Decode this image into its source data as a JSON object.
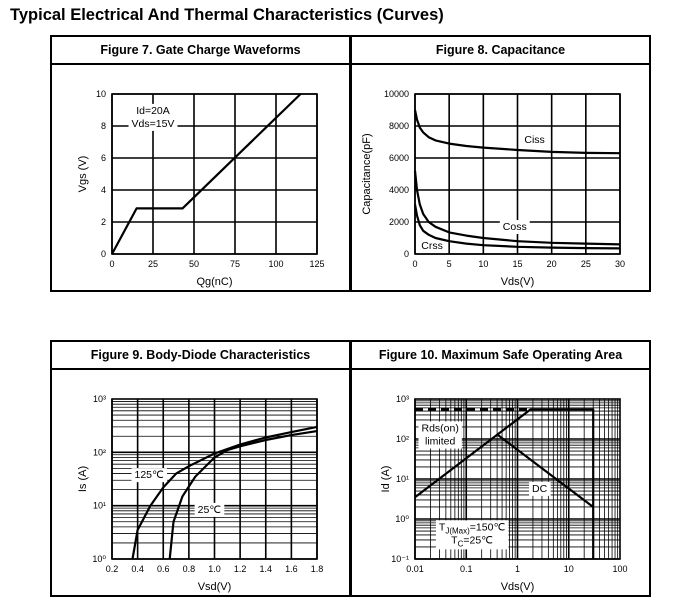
{
  "page": {
    "title": "Typical Electrical And Thermal Characteristics (Curves)"
  },
  "chart_data": [
    {
      "type": "line",
      "title": "Figure 7. Gate Charge Waveforms",
      "xlabel": "Qg(nC)",
      "ylabel": "Vgs (V)",
      "xscale": "linear",
      "yscale": "linear",
      "xlim": [
        0,
        125
      ],
      "ylim": [
        0,
        10
      ],
      "xticks": [
        0,
        25,
        50,
        75,
        100,
        125
      ],
      "xtick_labels": [
        "0",
        "25",
        "50",
        "75",
        "100",
        "125"
      ],
      "yticks": [
        0,
        2,
        4,
        6,
        8,
        10
      ],
      "ytick_labels": [
        "0",
        "2",
        "4",
        "6",
        "8",
        "10"
      ],
      "grid": true,
      "series": [
        {
          "name": "Vgs",
          "x": [
            0,
            15,
            43,
            115
          ],
          "y": [
            0,
            2.85,
            2.85,
            10
          ]
        }
      ],
      "annotations": [
        {
          "lines": [
            [
              {
                "t": "Id=20A"
              }
            ],
            [
              {
                "t": "Vds=15V"
              }
            ]
          ],
          "x": 25,
          "y": 8.6
        }
      ]
    },
    {
      "type": "line",
      "title": "Figure 8. Capacitance",
      "xlabel": "Vds(V)",
      "ylabel": "Capacitance(pF)",
      "xscale": "linear",
      "yscale": "linear",
      "xlim": [
        0,
        30
      ],
      "ylim": [
        0,
        10000
      ],
      "xticks": [
        0,
        5,
        10,
        15,
        20,
        25,
        30
      ],
      "xtick_labels": [
        "0",
        "5",
        "10",
        "15",
        "20",
        "25",
        "30"
      ],
      "yticks": [
        0,
        2000,
        4000,
        6000,
        8000,
        10000
      ],
      "ytick_labels": [
        "0",
        "2000",
        "4000",
        "6000",
        "8000",
        "10000"
      ],
      "grid": true,
      "series": [
        {
          "name": "Ciss",
          "x": [
            0,
            0.3,
            0.7,
            1.2,
            2,
            3,
            5,
            7.5,
            10,
            15,
            20,
            25,
            30
          ],
          "y": [
            9000,
            8400,
            7900,
            7600,
            7300,
            7100,
            6900,
            6750,
            6650,
            6500,
            6380,
            6320,
            6300
          ]
        },
        {
          "name": "Coss",
          "x": [
            0,
            0.3,
            0.7,
            1.2,
            2,
            3,
            5,
            7.5,
            10,
            15,
            20,
            25,
            30
          ],
          "y": [
            5200,
            4000,
            3100,
            2500,
            2000,
            1700,
            1350,
            1150,
            1000,
            800,
            700,
            650,
            600
          ]
        },
        {
          "name": "Crss",
          "x": [
            0,
            0.3,
            0.7,
            1.2,
            2,
            3,
            5,
            7.5,
            10,
            15,
            20,
            25,
            30
          ],
          "y": [
            3100,
            2400,
            1800,
            1450,
            1200,
            1000,
            800,
            650,
            550,
            450,
            400,
            370,
            350
          ]
        }
      ],
      "annotations": [
        {
          "lines": [
            [
              {
                "t": "Ciss"
              }
            ]
          ],
          "x": 17.5,
          "y": 7200
        },
        {
          "lines": [
            [
              {
                "t": "Coss"
              }
            ]
          ],
          "x": 14.6,
          "y": 1750
        },
        {
          "lines": [
            [
              {
                "t": "Crss"
              }
            ]
          ],
          "x": 2.5,
          "y": 560
        }
      ]
    },
    {
      "type": "line",
      "title": "Figure 9. Body-Diode Characteristics",
      "xlabel": "Vsd(V)",
      "ylabel": "Is (A)",
      "xscale": "linear",
      "yscale": "log",
      "xlim": [
        0.2,
        1.8
      ],
      "ylim": [
        1,
        1000
      ],
      "xticks": [
        0.2,
        0.4,
        0.6,
        0.8,
        1.0,
        1.2,
        1.4,
        1.6,
        1.8
      ],
      "xtick_labels": [
        "0.2",
        "0.4",
        "0.6",
        "0.8",
        "1.0",
        "1.2",
        "1.4",
        "1.6",
        "1.8"
      ],
      "yticks": [
        1,
        10,
        100,
        1000
      ],
      "ytick_labels": [
        "10⁰",
        "10¹",
        "10²",
        "10³"
      ],
      "grid": true,
      "series": [
        {
          "name": "125℃",
          "x": [
            0.36,
            0.4,
            0.5,
            0.6,
            0.7,
            0.8,
            1.0,
            1.2,
            1.4,
            1.6,
            1.8
          ],
          "y": [
            1,
            3.5,
            10,
            22,
            40,
            55,
            95,
            140,
            190,
            240,
            300
          ]
        },
        {
          "name": "25℃",
          "x": [
            0.65,
            0.68,
            0.75,
            0.85,
            1.0,
            1.1,
            1.2,
            1.4,
            1.6,
            1.8
          ],
          "y": [
            1,
            5,
            15,
            35,
            80,
            110,
            130,
            170,
            210,
            250
          ]
        }
      ],
      "annotations": [
        {
          "lines": [
            [
              {
                "t": "125℃"
              }
            ]
          ],
          "x": 0.49,
          "y": 39
        },
        {
          "lines": [
            [
              {
                "t": "25℃"
              }
            ]
          ],
          "x": 0.96,
          "y": 8.7
        }
      ]
    },
    {
      "type": "line",
      "title": "Figure 10. Maximum Safe Operating Area",
      "xlabel": "Vds(V)",
      "ylabel": "Id (A)",
      "xscale": "log",
      "yscale": "log",
      "xlim": [
        0.01,
        100
      ],
      "ylim": [
        0.1,
        1000
      ],
      "xticks": [
        0.01,
        0.1,
        1,
        10,
        100
      ],
      "xtick_labels": [
        "0.01",
        "0.1",
        "1",
        "10",
        "100"
      ],
      "yticks": [
        0.1,
        1,
        10,
        100,
        1000
      ],
      "ytick_labels": [
        "10⁻¹",
        "10⁰",
        "10¹",
        "10²",
        "10³"
      ],
      "grid": true,
      "series": [
        {
          "name": "Current limit (dashed)",
          "x": [
            0.01,
            1.8
          ],
          "y": [
            550,
            550
          ],
          "dashed": true
        },
        {
          "name": "Rds(on) limited",
          "x": [
            0.01,
            1.8,
            30,
            30
          ],
          "y": [
            3.5,
            550,
            550,
            0.1
          ]
        },
        {
          "name": "DC",
          "x": [
            0.4,
            30
          ],
          "y": [
            130,
            2
          ]
        }
      ],
      "annotations": [
        {
          "lines": [
            [
              {
                "t": "Rds(on)"
              }
            ],
            [
              {
                "t": "limited"
              }
            ]
          ],
          "x": 0.031,
          "y": 133
        },
        {
          "lines": [
            [
              {
                "t": "DC"
              }
            ]
          ],
          "x": 2.7,
          "y": 6
        },
        {
          "lines": [
            [
              {
                "t": "T"
              },
              {
                "t": "J(Max)",
                "sub": true
              },
              {
                "t": "=150℃"
              }
            ],
            [
              {
                "t": "T"
              },
              {
                "t": "C",
                "sub": true
              },
              {
                "t": "=25℃"
              }
            ]
          ],
          "x": 0.13,
          "y": 0.45
        }
      ]
    }
  ]
}
